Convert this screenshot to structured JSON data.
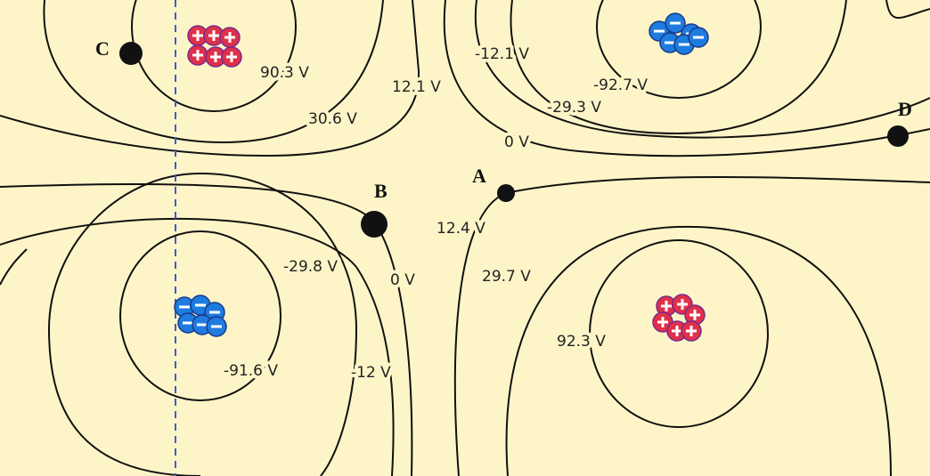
{
  "contour_labels": [
    "90.3 V",
    "30.6 V",
    "12.1 V",
    "-12.1 V",
    "-92.7 V",
    "-29.3 V",
    "0 V",
    "12.4 V",
    "-29.8 V",
    "0 V",
    "29.7 V",
    "92.3 V",
    "-91.6 V",
    "-12 V"
  ],
  "points": [
    "A",
    "B",
    "C",
    "D"
  ]
}
